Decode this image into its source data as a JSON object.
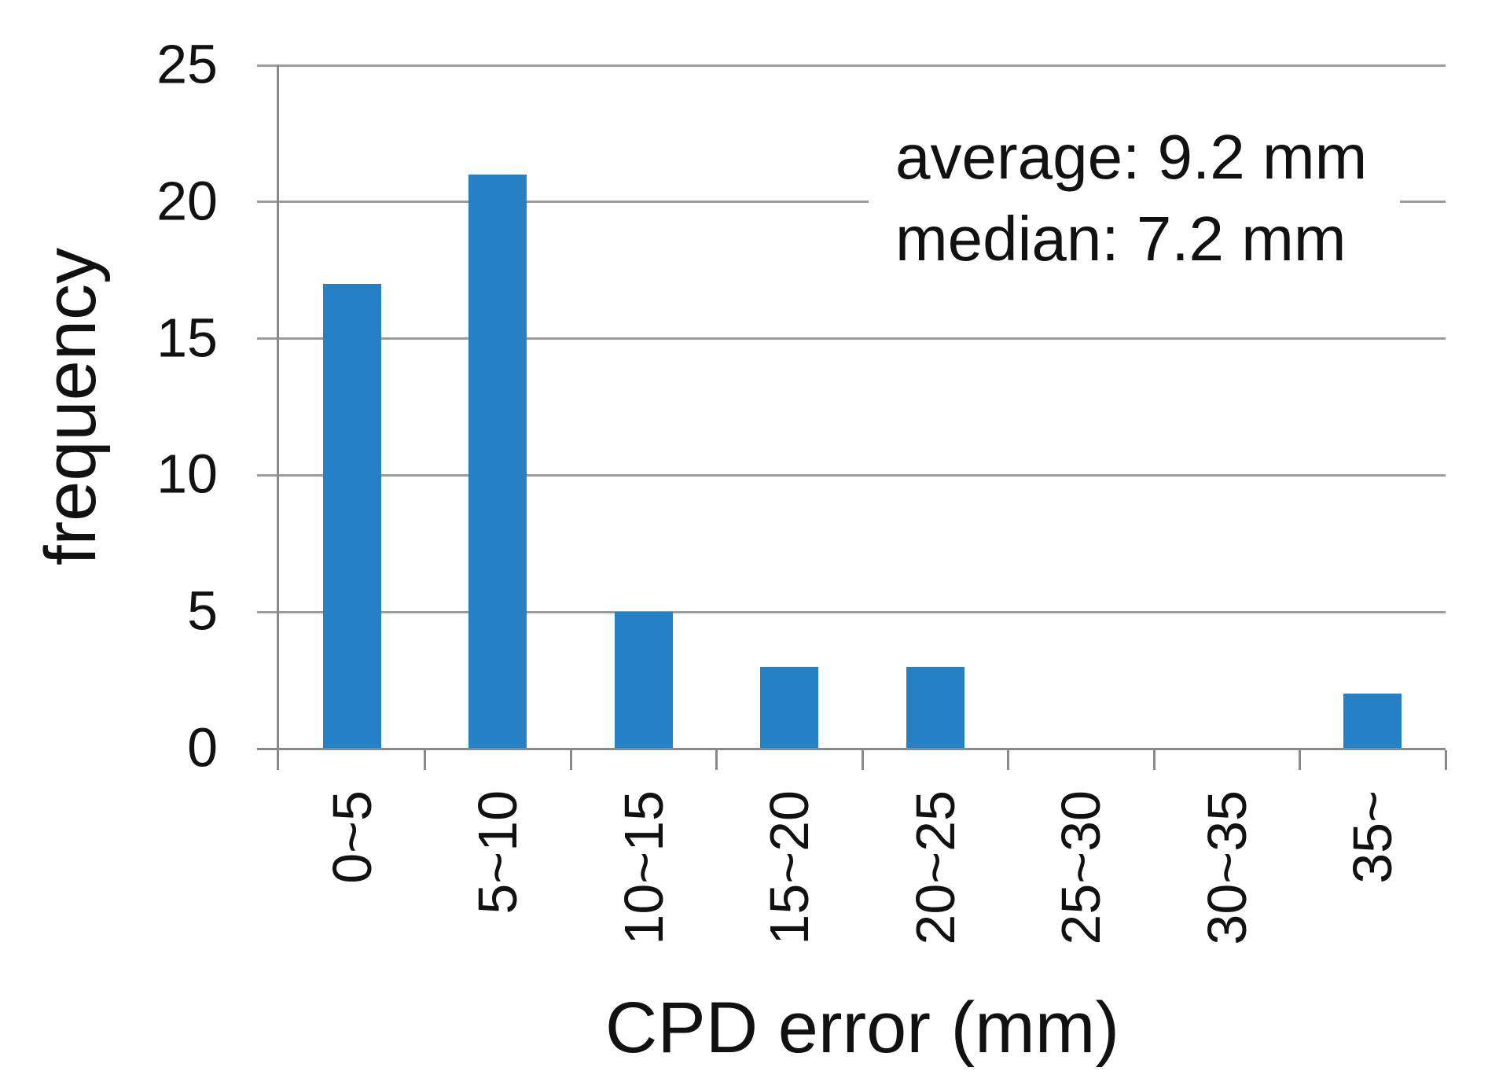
{
  "chart_data": {
    "type": "bar",
    "title": "",
    "categories": [
      "0~5",
      "5~10",
      "10~15",
      "15~20",
      "20~25",
      "25~30",
      "30~35",
      "35~"
    ],
    "values": [
      17,
      21,
      5,
      3,
      3,
      0,
      0,
      2
    ],
    "xlabel": "CPD error (mm)",
    "ylabel": "frequency",
    "ylim": [
      0,
      25
    ],
    "yticks": [
      0,
      5,
      10,
      15,
      20,
      25
    ],
    "grid": "horizontal gridlines with outward axis ticks",
    "legend_position": "none",
    "annotation": {
      "lines": [
        "average: 9.2 mm",
        "median: 7.2 mm"
      ]
    },
    "colors": {
      "bar": "#2581c3",
      "gridline": "#9b9b9b",
      "axis": "#8a8a8a",
      "text": "#111111",
      "background": "#ffffff"
    }
  }
}
